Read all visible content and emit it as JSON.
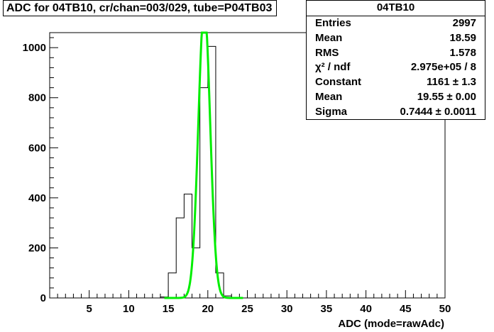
{
  "title": "ADC for 04TB10,  cr/chan=003/029,  tube=P04TB03",
  "stats": {
    "title": "04TB10",
    "rows": [
      {
        "label": "Entries",
        "value": "2997"
      },
      {
        "label": "Mean",
        "value": "18.59"
      },
      {
        "label": "RMS",
        "value": "1.578"
      },
      {
        "label": "χ² / ndf",
        "value": "2.975e+05 / 8"
      },
      {
        "label": "Constant",
        "value": "1161 ± 1.3"
      },
      {
        "label": "Mean",
        "value": "19.55 ± 0.00"
      },
      {
        "label": "Sigma",
        "value": "0.7444 ± 0.0011"
      }
    ]
  },
  "chart_data": {
    "type": "histogram",
    "xlabel": "ADC (mode=rawAdc)",
    "ylabel": "",
    "xlim": [
      0,
      50
    ],
    "ylim": [
      0,
      1060
    ],
    "xticks": [
      5,
      10,
      15,
      20,
      25,
      30,
      35,
      40,
      45,
      50
    ],
    "yticks": [
      0,
      200,
      400,
      600,
      800,
      1000
    ],
    "bin_edges": [
      0,
      1,
      2,
      3,
      4,
      5,
      6,
      7,
      8,
      9,
      10,
      11,
      12,
      13,
      14,
      15,
      16,
      17,
      18,
      19,
      20,
      21,
      22,
      23,
      24,
      25,
      26,
      27,
      28,
      29,
      30,
      31,
      32,
      33,
      34,
      35,
      36,
      37,
      38,
      39,
      40,
      41,
      42,
      43,
      44,
      45,
      46,
      47,
      48,
      49,
      50
    ],
    "counts": [
      0,
      0,
      0,
      0,
      0,
      0,
      0,
      0,
      0,
      0,
      0,
      0,
      0,
      0,
      4,
      100,
      320,
      415,
      200,
      840,
      1005,
      100,
      8,
      0,
      0,
      0,
      0,
      0,
      0,
      0,
      0,
      0,
      0,
      0,
      0,
      0,
      0,
      0,
      0,
      0,
      0,
      0,
      0,
      0,
      0,
      0,
      0,
      0,
      0,
      0
    ],
    "fit": {
      "function": "gaus",
      "constant": 1161,
      "mean": 19.55,
      "sigma": 0.7444,
      "color": "#00ee00"
    },
    "histogram_color": "#000000",
    "grid": false
  }
}
